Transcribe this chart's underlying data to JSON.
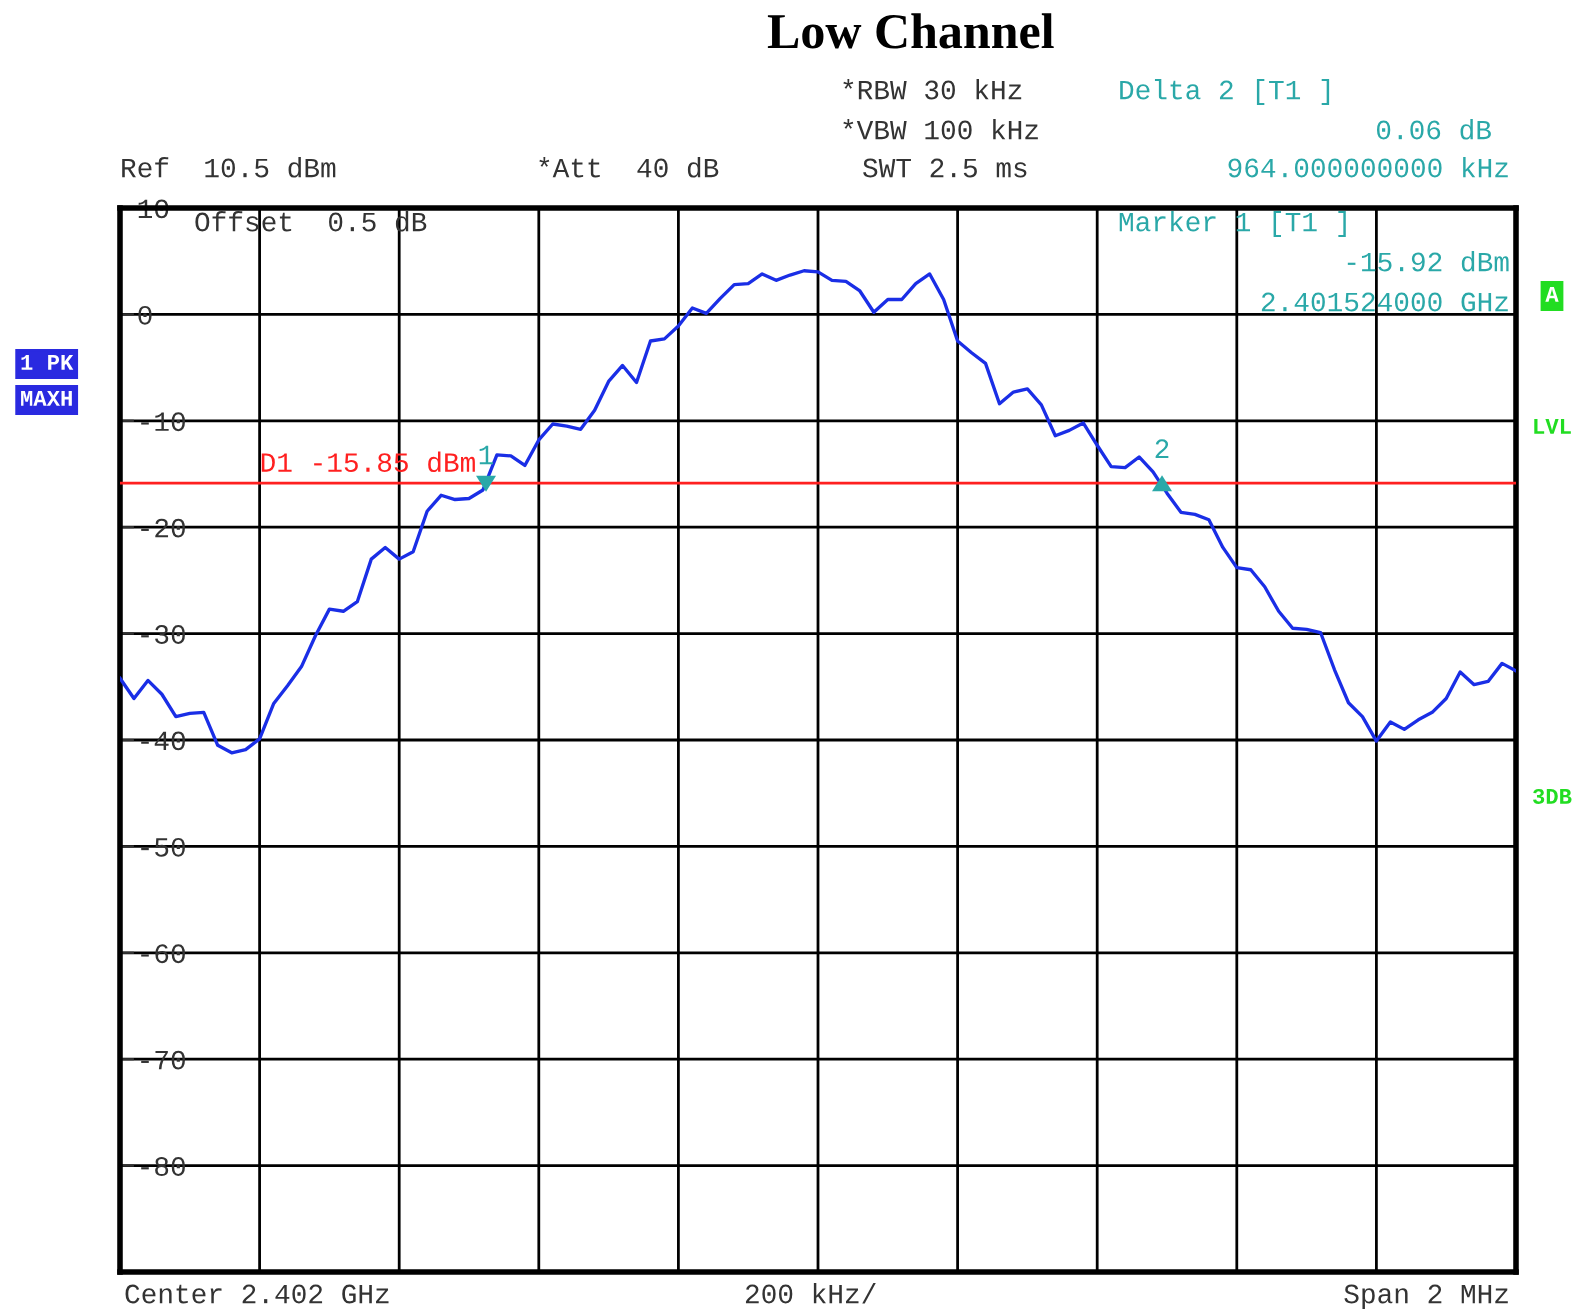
{
  "chart_data": {
    "type": "line",
    "title": "Low Channel",
    "categories": [
      null,
      null,
      null,
      null,
      null,
      null,
      null,
      null,
      null,
      null,
      null,
      null,
      null,
      null,
      null,
      null,
      null,
      null,
      null,
      null,
      null,
      null,
      null,
      null,
      null,
      null,
      null,
      null,
      null,
      null,
      null,
      null,
      null,
      null,
      null,
      null,
      null,
      null,
      null,
      null,
      null,
      null,
      null,
      null,
      null,
      null,
      null,
      null,
      null,
      null,
      null,
      null,
      null,
      null,
      null,
      null,
      null,
      null,
      null,
      null,
      null,
      null,
      null,
      null,
      null,
      null,
      null,
      null,
      null,
      null,
      null,
      null,
      null,
      null,
      null,
      null,
      null,
      null,
      null,
      null,
      null,
      null,
      null,
      null,
      null,
      null,
      null,
      null,
      null,
      null,
      null,
      null,
      null,
      null,
      null,
      null,
      null,
      null,
      null,
      null,
      null
    ],
    "ylim": [
      -90,
      10
    ],
    "yticks": [
      10,
      0,
      -10,
      -20,
      -30,
      -40,
      -50,
      -60,
      -70,
      -80
    ],
    "tick_labels": "y",
    "grid": true,
    "series": [
      {
        "color": "#1a2ee6",
        "marker": "none",
        "line_style": "solid",
        "values": [
          -34.2,
          -36.1,
          -34.4,
          -35.7,
          -37.8,
          -37.5,
          -37.4,
          -40.5,
          -41.2,
          -40.9,
          -39.9,
          -36.6,
          -34.9,
          -33.1,
          -30.2,
          -27.7,
          -27.9,
          -27.0,
          -23.0,
          -21.9,
          -23.0,
          -22.3,
          -18.5,
          -17.0,
          -17.4,
          -17.3,
          -16.5,
          -13.2,
          -13.3,
          -14.2,
          -11.8,
          -10.3,
          -10.5,
          -10.8,
          -9.0,
          -6.3,
          -4.8,
          -6.4,
          -2.5,
          -2.3,
          -1.1,
          0.6,
          0.1,
          1.5,
          2.8,
          2.9,
          3.8,
          3.2,
          3.7,
          4.1,
          4.0,
          3.2,
          3.1,
          2.2,
          0.2,
          1.4,
          1.4,
          2.9,
          3.8,
          1.4,
          -2.5,
          -3.6,
          -4.6,
          -8.4,
          -7.3,
          -7.0,
          -8.5,
          -11.4,
          -10.9,
          -10.2,
          -12.3,
          -14.3,
          -14.4,
          -13.4,
          -14.8,
          -16.8,
          -18.6,
          -18.8,
          -19.3,
          -21.9,
          -23.8,
          -24.0,
          -25.6,
          -27.9,
          -29.5,
          -29.6,
          -29.9,
          -33.4,
          -36.5,
          -37.8,
          -40.1,
          -38.3,
          -39.0,
          -38.1,
          -37.4,
          -36.1,
          -33.6,
          -34.8,
          -34.5,
          -32.8,
          -33.5
        ]
      }
    ],
    "ref_lines": [
      {
        "axis": "y",
        "value": -15.85,
        "label": "D1 -15.85 dBm",
        "color": "#ff2020",
        "line_style": "solid"
      }
    ],
    "annotations": [
      "Ref  10.5 dBm",
      "*Att  40 dB",
      "*RBW 30 kHz",
      "*VBW 100 kHz",
      "SWT 2.5 ms",
      "Delta 2 [T1 ]",
      "0.06 dB",
      "964.000000000 kHz",
      "Offset  0.5 dB",
      "Marker 1 [T1 ]",
      "-15.92 dBm",
      "2.401524000 GHz",
      "1 PK",
      "MAXH",
      "A",
      "LVL",
      "3DB",
      "Center 2.402 GHz",
      "200 kHz/",
      "Span 2 MHz",
      {
        "text": "1",
        "y": -15.92
      },
      {
        "text": "2",
        "y": -15.86
      }
    ]
  }
}
